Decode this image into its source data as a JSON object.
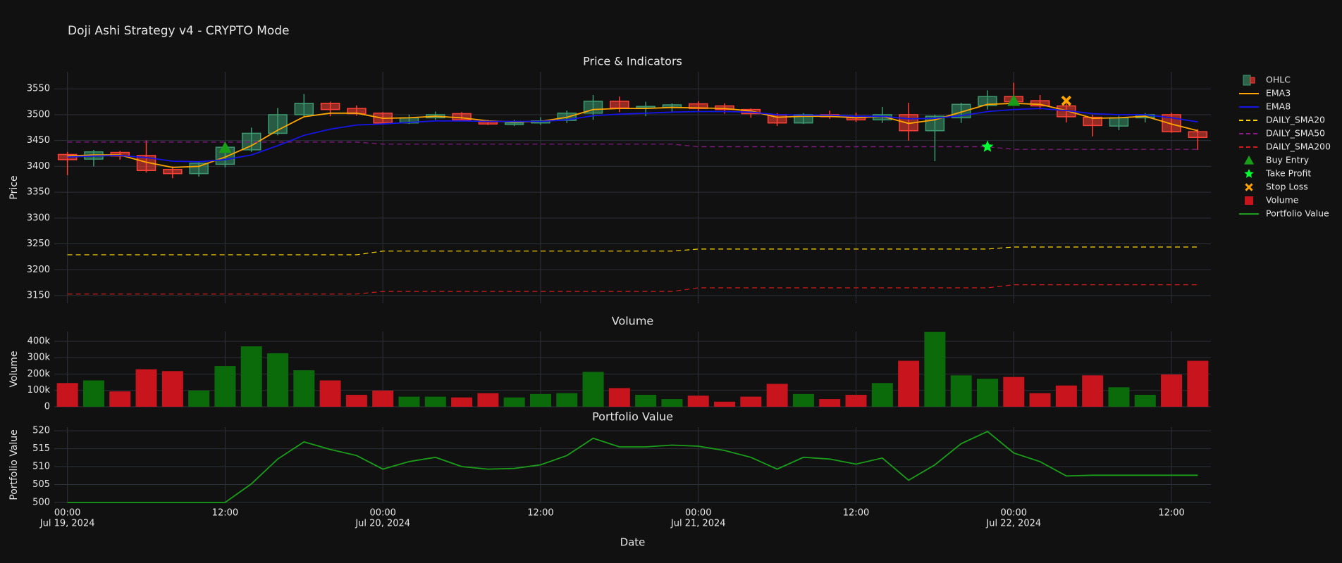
{
  "chart_data": {
    "type": "subplots",
    "title": "Doji Ashi Strategy v4 - CRYPTO Mode",
    "xlabel": "Date",
    "grid": true,
    "legend_position": "right",
    "x": [
      "2024-07-19 00:00",
      "2024-07-19 02:00",
      "2024-07-19 04:00",
      "2024-07-19 06:00",
      "2024-07-19 08:00",
      "2024-07-19 10:00",
      "2024-07-19 12:00",
      "2024-07-19 14:00",
      "2024-07-19 16:00",
      "2024-07-19 18:00",
      "2024-07-19 20:00",
      "2024-07-19 22:00",
      "2024-07-20 00:00",
      "2024-07-20 02:00",
      "2024-07-20 04:00",
      "2024-07-20 06:00",
      "2024-07-20 08:00",
      "2024-07-20 10:00",
      "2024-07-20 12:00",
      "2024-07-20 14:00",
      "2024-07-20 16:00",
      "2024-07-20 18:00",
      "2024-07-20 20:00",
      "2024-07-20 22:00",
      "2024-07-21 00:00",
      "2024-07-21 02:00",
      "2024-07-21 04:00",
      "2024-07-21 06:00",
      "2024-07-21 08:00",
      "2024-07-21 10:00",
      "2024-07-21 12:00",
      "2024-07-21 14:00",
      "2024-07-21 16:00",
      "2024-07-21 18:00",
      "2024-07-21 20:00",
      "2024-07-21 22:00",
      "2024-07-22 00:00",
      "2024-07-22 02:00",
      "2024-07-22 04:00",
      "2024-07-22 06:00",
      "2024-07-22 08:00",
      "2024-07-22 10:00",
      "2024-07-22 12:00",
      "2024-07-22 14:00"
    ],
    "xlim": [
      "2024-07-18 23:00",
      "2024-07-22 15:00"
    ],
    "xticks": [
      {
        "value": "2024-07-19 00:00",
        "label": [
          "00:00",
          "Jul 19, 2024"
        ]
      },
      {
        "value": "2024-07-19 12:00",
        "label": [
          "12:00"
        ]
      },
      {
        "value": "2024-07-20 00:00",
        "label": [
          "00:00",
          "Jul 20, 2024"
        ]
      },
      {
        "value": "2024-07-20 12:00",
        "label": [
          "12:00"
        ]
      },
      {
        "value": "2024-07-21 00:00",
        "label": [
          "00:00",
          "Jul 21, 2024"
        ]
      },
      {
        "value": "2024-07-21 12:00",
        "label": [
          "12:00"
        ]
      },
      {
        "value": "2024-07-22 00:00",
        "label": [
          "00:00",
          "Jul 22, 2024"
        ]
      },
      {
        "value": "2024-07-22 12:00",
        "label": [
          "12:00"
        ]
      }
    ],
    "panels": [
      {
        "type": "candlestick",
        "title": "Price & Indicators",
        "ylabel": "Price",
        "ylim": [
          3135,
          3583
        ],
        "yticks": [
          3150,
          3200,
          3250,
          3300,
          3350,
          3400,
          3450,
          3500,
          3550
        ],
        "ohlc": {
          "name": "OHLC",
          "increasing_color": "#3D9970",
          "decreasing_color": "#FF4136",
          "open": [
            3423,
            3414,
            3427,
            3421,
            3394,
            3386,
            3404,
            3432,
            3464,
            3500,
            3522,
            3512,
            3503,
            3484,
            3494,
            3502,
            3486,
            3481,
            3484,
            3489,
            3503,
            3526,
            3513,
            3514,
            3521,
            3517,
            3510,
            3500,
            3484,
            3500,
            3497,
            3490,
            3500,
            3469,
            3494,
            3518,
            3535,
            3527,
            3517,
            3495,
            3478,
            3494,
            3500,
            3467
          ],
          "high": [
            3428,
            3432,
            3430,
            3450,
            3400,
            3410,
            3442,
            3475,
            3513,
            3540,
            3525,
            3518,
            3505,
            3500,
            3506,
            3505,
            3490,
            3490,
            3495,
            3508,
            3538,
            3535,
            3525,
            3522,
            3526,
            3522,
            3512,
            3503,
            3503,
            3508,
            3504,
            3515,
            3523,
            3500,
            3523,
            3547,
            3562,
            3538,
            3522,
            3500,
            3498,
            3503,
            3504,
            3472
          ],
          "low": [
            3383,
            3400,
            3413,
            3388,
            3377,
            3380,
            3398,
            3428,
            3460,
            3497,
            3497,
            3498,
            3482,
            3482,
            3490,
            3488,
            3480,
            3478,
            3480,
            3484,
            3490,
            3505,
            3497,
            3505,
            3505,
            3502,
            3494,
            3478,
            3482,
            3492,
            3486,
            3484,
            3450,
            3410,
            3484,
            3510,
            3520,
            3510,
            3485,
            3458,
            3470,
            3485,
            3465,
            3432
          ],
          "close": [
            3413,
            3428,
            3420,
            3392,
            3386,
            3406,
            3437,
            3464,
            3500,
            3522,
            3510,
            3502,
            3484,
            3494,
            3500,
            3490,
            3482,
            3484,
            3488,
            3503,
            3526,
            3513,
            3516,
            3519,
            3512,
            3510,
            3502,
            3484,
            3500,
            3496,
            3490,
            3500,
            3469,
            3497,
            3520,
            3535,
            3525,
            3517,
            3496,
            3479,
            3494,
            3500,
            3467,
            3456
          ]
        },
        "lines": [
          {
            "name": "EMA3",
            "color": "#FFA500",
            "dash": "solid",
            "values": [
              3420,
              3422,
              3422,
              3408,
              3398,
              3400,
              3418,
              3440,
              3470,
              3496,
              3503,
              3503,
              3493,
              3494,
              3497,
              3494,
              3488,
              3486,
              3487,
              3495,
              3510,
              3512,
              3512,
              3514,
              3513,
              3512,
              3507,
              3495,
              3497,
              3497,
              3494,
              3497,
              3483,
              3490,
              3505,
              3520,
              3522,
              3520,
              3508,
              3493,
              3494,
              3497,
              3482,
              3469
            ]
          },
          {
            "name": "EMA8",
            "color": "#1515e6",
            "dash": "solid",
            "values": [
              3418,
              3420,
              3421,
              3417,
              3410,
              3409,
              3413,
              3422,
              3440,
              3460,
              3472,
              3480,
              3482,
              3485,
              3488,
              3488,
              3487,
              3487,
              3487,
              3490,
              3498,
              3501,
              3503,
              3505,
              3506,
              3506,
              3505,
              3500,
              3499,
              3499,
              3497,
              3497,
              3492,
              3493,
              3498,
              3506,
              3510,
              3512,
              3508,
              3502,
              3500,
              3500,
              3494,
              3486
            ]
          },
          {
            "name": "DAILY_SMA20",
            "color": "#FFD700",
            "dash": "dash",
            "values": [
              3229,
              3229,
              3229,
              3229,
              3229,
              3229,
              3229,
              3229,
              3229,
              3229,
              3229,
              3229,
              3236,
              3236,
              3236,
              3236,
              3236,
              3236,
              3236,
              3236,
              3236,
              3236,
              3236,
              3236,
              3240,
              3240,
              3240,
              3240,
              3240,
              3240,
              3240,
              3240,
              3240,
              3240,
              3240,
              3240,
              3244,
              3244,
              3244,
              3244,
              3244,
              3244,
              3244,
              3244
            ]
          },
          {
            "name": "DAILY_SMA50",
            "color": "#8b1a8b",
            "dash": "dash",
            "values": [
              3447,
              3447,
              3447,
              3447,
              3447,
              3447,
              3447,
              3447,
              3447,
              3447,
              3447,
              3447,
              3443,
              3443,
              3443,
              3443,
              3443,
              3443,
              3443,
              3443,
              3443,
              3443,
              3443,
              3443,
              3438,
              3438,
              3438,
              3438,
              3438,
              3438,
              3438,
              3438,
              3438,
              3438,
              3438,
              3438,
              3433,
              3433,
              3433,
              3433,
              3433,
              3433,
              3433,
              3433
            ]
          },
          {
            "name": "DAILY_SMA200",
            "color": "#d41a1a",
            "dash": "dash",
            "values": [
              3153,
              3153,
              3153,
              3153,
              3153,
              3153,
              3153,
              3153,
              3153,
              3153,
              3153,
              3153,
              3158,
              3158,
              3158,
              3158,
              3158,
              3158,
              3158,
              3158,
              3158,
              3158,
              3158,
              3158,
              3165,
              3165,
              3165,
              3165,
              3165,
              3165,
              3165,
              3165,
              3165,
              3165,
              3165,
              3165,
              3171,
              3171,
              3171,
              3171,
              3171,
              3171,
              3171,
              3171
            ]
          }
        ],
        "markers": [
          {
            "name": "Buy Entry",
            "color": "#1a9e1a",
            "symbol": "triangle-up",
            "x": [
              "2024-07-19 12:00",
              "2024-07-22 00:00"
            ],
            "y": [
              3436,
              3527
            ]
          },
          {
            "name": "Take Profit",
            "color": "#00ff33",
            "symbol": "star",
            "x": [
              "2024-07-21 22:00"
            ],
            "y": [
              3438
            ]
          },
          {
            "name": "Stop Loss",
            "color": "#FFA500",
            "symbol": "x",
            "x": [
              "2024-07-22 04:00"
            ],
            "y": [
              3527
            ]
          }
        ]
      },
      {
        "type": "bar",
        "title": "Volume",
        "ylabel": "Volume",
        "ylim": [
          0,
          460000
        ],
        "yticks": [
          0,
          {
            "value": 100000,
            "label": "100k"
          },
          {
            "value": 200000,
            "label": "200k"
          },
          {
            "value": 300000,
            "label": "300k"
          },
          {
            "value": 400000,
            "label": "400k"
          }
        ],
        "series": [
          {
            "name": "Volume",
            "color": "#c8141c",
            "increasing_color": "#0b6b0b",
            "values": [
              145000,
              161000,
              94000,
              229000,
              218000,
              99000,
              249000,
              369000,
              327000,
              223000,
              161000,
              73000,
              99000,
              62000,
              62000,
              57000,
              83000,
              57000,
              78000,
              83000,
              213000,
              114000,
              73000,
              47000,
              68000,
              31000,
              62000,
              140000,
              78000,
              47000,
              73000,
              145000,
              281000,
              457000,
              192000,
              171000,
              182000,
              83000,
              130000,
              192000,
              119000,
              73000,
              197000,
              281000
            ]
          }
        ]
      },
      {
        "type": "line",
        "title": "Portfolio Value",
        "ylabel": "Portfolio Value",
        "ylim": [
          500,
          521
        ],
        "yticks": [
          500,
          505,
          510,
          515,
          520
        ],
        "series": [
          {
            "name": "Portfolio Value",
            "color": "#1a9e1a",
            "values": [
              500,
              500,
              500,
              500,
              500,
              500,
              500,
              505.2,
              512.1,
              516.9,
              514.8,
              513.1,
              509.3,
              511.4,
              512.6,
              510.0,
              509.3,
              509.5,
              510.5,
              513.1,
              517.9,
              515.5,
              515.5,
              516.0,
              515.7,
              514.5,
              512.6,
              509.3,
              512.6,
              512.1,
              510.7,
              512.4,
              506.2,
              510.5,
              516.4,
              519.8,
              513.8,
              511.4,
              507.4,
              507.6,
              507.6,
              507.6,
              507.6,
              507.6
            ]
          }
        ]
      }
    ]
  }
}
